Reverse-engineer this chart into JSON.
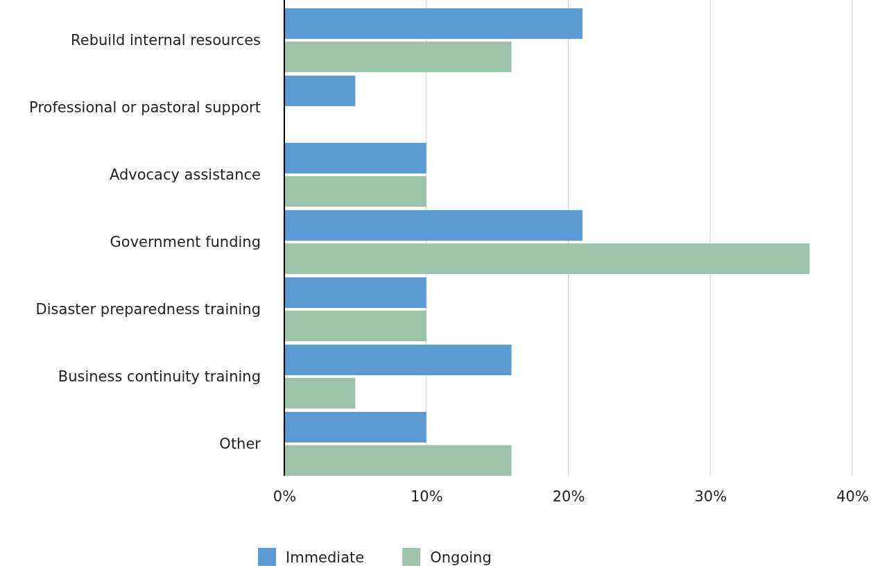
{
  "chart_data": {
    "type": "bar",
    "orientation": "horizontal",
    "categories": [
      "Rebuild internal resources",
      "Professional or pastoral support",
      "Advocacy assistance",
      "Government funding",
      "Disaster preparedness training",
      "Business continuity training",
      "Other"
    ],
    "series": [
      {
        "name": "Immediate",
        "color": "#5b9bd5",
        "values": [
          21,
          5,
          10,
          21,
          10,
          16,
          10
        ]
      },
      {
        "name": "Ongoing",
        "color": "#9dc3ab",
        "values": [
          16,
          0,
          10,
          37,
          10,
          5,
          16
        ]
      }
    ],
    "xlim": [
      0,
      40
    ],
    "xticks": [
      {
        "value": 0,
        "label": "0%"
      },
      {
        "value": 10,
        "label": "10%"
      },
      {
        "value": 20,
        "label": "20%"
      },
      {
        "value": 30,
        "label": "30%"
      },
      {
        "value": 40,
        "label": "40%"
      }
    ],
    "grid": "x",
    "legend": "bottom"
  }
}
